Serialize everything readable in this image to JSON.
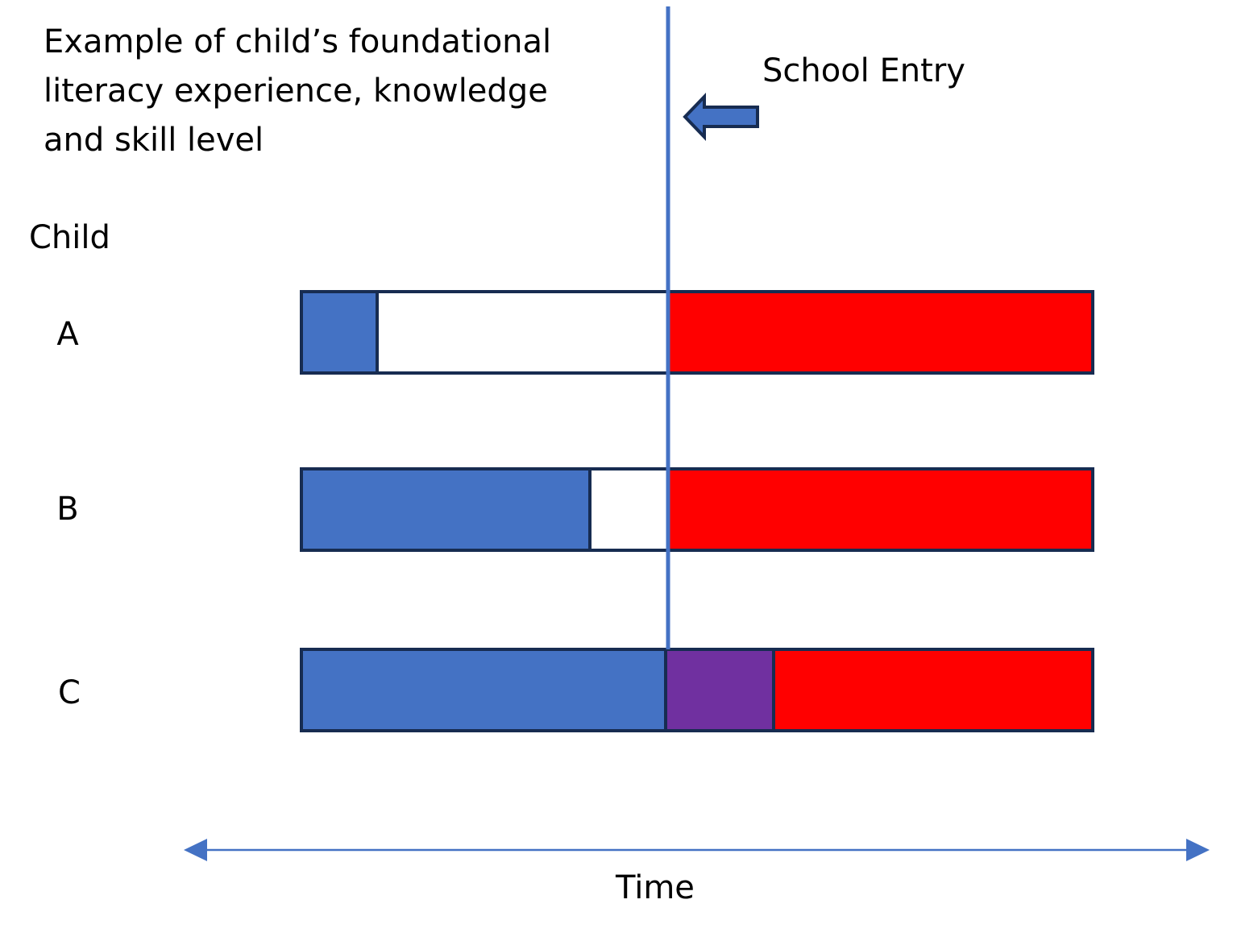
{
  "title_lines": [
    "Example of child’s foundational",
    "literacy experience, knowledge",
    "and skill level"
  ],
  "school_entry_label": "School Entry",
  "child_heading": "Child",
  "rows": [
    {
      "label": "A"
    },
    {
      "label": "B"
    },
    {
      "label": "C"
    }
  ],
  "time_label": "Time",
  "colors": {
    "blue": "#4472C4",
    "red": "#FF0000",
    "purple": "#7030A0",
    "white": "#FFFFFF",
    "outline": "#172C51",
    "line": "#4472C4"
  }
}
